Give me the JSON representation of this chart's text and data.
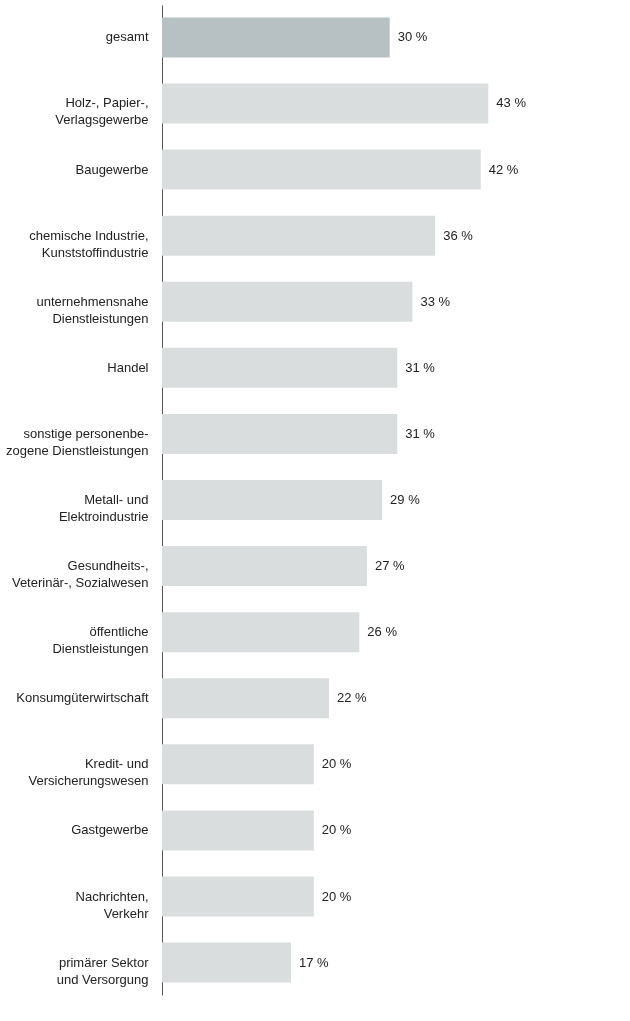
{
  "chart_data": {
    "type": "bar",
    "orientation": "horizontal",
    "categories": [
      "gesamt",
      "Holz-, Papier-,\nVerlagsgewerbe",
      "Baugewerbe",
      "chemische Industrie,\nKunststoffindustrie",
      "unternehmensnahe\nDienstleistungen",
      "Handel",
      "sonstige personenbe-\nzogene Dienstleistungen",
      "Metall- und\nElektroindustrie",
      "Gesundheits-,\nVeterinär-, Sozialwesen",
      "öffentliche\nDienstleistungen",
      "Konsumgüterwirtschaft",
      "Kredit- und\nVersicherungswesen",
      "Gastgewerbe",
      "Nachrichten,\nVerkehr",
      "primärer Sektor\nund Versorgung"
    ],
    "values": [
      30,
      43,
      42,
      36,
      33,
      31,
      31,
      29,
      27,
      26,
      22,
      20,
      20,
      20,
      17
    ],
    "value_labels": [
      "30 %",
      "43 %",
      "42 %",
      "36 %",
      "33 %",
      "31 %",
      "31 %",
      "29 %",
      "27 %",
      "26 %",
      "22 %",
      "20 %",
      "20 %",
      "20 %",
      "17 %"
    ],
    "colors": [
      "#b7c0c2",
      "#d9dddd",
      "#d9dddd",
      "#d9dddd",
      "#d9dddd",
      "#d9dddd",
      "#d9dddd",
      "#d9dddd",
      "#d9dddd",
      "#d9dddd",
      "#d9dddd",
      "#d9dddd",
      "#d9dddd",
      "#d9dddd",
      "#d9dddd"
    ],
    "grid": false
  }
}
